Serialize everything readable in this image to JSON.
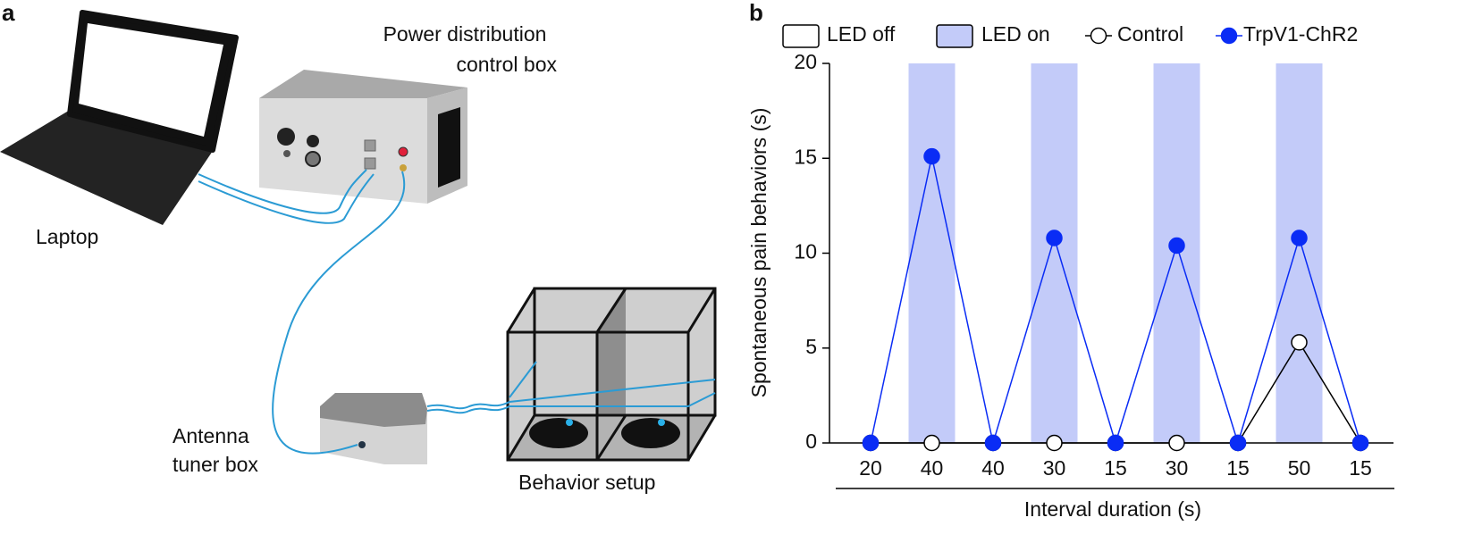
{
  "panel_a": {
    "label": "a",
    "power_box_label": [
      "Power distribution",
      "control box"
    ],
    "laptop_label": "Laptop",
    "tuner_label": [
      "Antenna",
      "tuner box"
    ],
    "setup_label": "Behavior setup"
  },
  "chart_data": {
    "type": "line",
    "panel_label": "b",
    "categories": [
      "20",
      "40",
      "40",
      "30",
      "15",
      "30",
      "15",
      "50",
      "15"
    ],
    "xlabel": "Interval duration (s)",
    "ylabel": "Spontaneous pain behaviors (s)",
    "ylim": [
      0,
      20
    ],
    "yticks": [
      0,
      5,
      10,
      15,
      20
    ],
    "shading": {
      "names": [
        "LED off",
        "LED on"
      ],
      "colors": [
        "#ffffff",
        "#c3cbf9"
      ],
      "led_on": [
        false,
        true,
        false,
        true,
        false,
        true,
        false,
        true,
        false
      ]
    },
    "series": [
      {
        "name": "Control",
        "color": "#ffffff",
        "edge_color": "#000000",
        "values": [
          0,
          0,
          0,
          0,
          0,
          0,
          0,
          5.3,
          0
        ]
      },
      {
        "name": "TrpV1-ChR2",
        "color": "#0a2cf5",
        "edge_color": "#0a2cf5",
        "values": [
          0,
          15.1,
          0,
          10.8,
          0,
          10.4,
          0,
          10.8,
          0
        ]
      }
    ]
  }
}
